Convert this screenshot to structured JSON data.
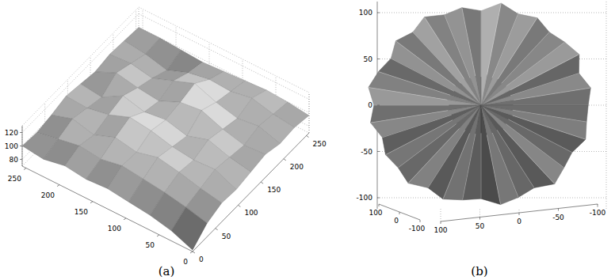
{
  "chart_data": [
    {
      "type": "surface",
      "title": "(a)",
      "x": [
        0,
        32,
        64,
        96,
        128,
        160,
        192,
        224,
        256
      ],
      "y": [
        0,
        32,
        64,
        96,
        128,
        160,
        192,
        224,
        256
      ],
      "z": [
        [
          72,
          90,
          98,
          96,
          100,
          104,
          98,
          100,
          96
        ],
        [
          85,
          98,
          104,
          110,
          106,
          102,
          108,
          104,
          100
        ],
        [
          92,
          104,
          112,
          108,
          116,
          110,
          104,
          112,
          102
        ],
        [
          96,
          108,
          118,
          112,
          106,
          122,
          112,
          106,
          100
        ],
        [
          100,
          112,
          110,
          120,
          114,
          118,
          124,
          108,
          98
        ],
        [
          98,
          106,
          116,
          124,
          110,
          104,
          112,
          102,
          96
        ],
        [
          102,
          110,
          104,
          112,
          118,
          108,
          100,
          90,
          98
        ],
        [
          96,
          104,
          112,
          106,
          100,
          114,
          106,
          98,
          100
        ],
        [
          100,
          98,
          102,
          108,
          104,
          100,
          104,
          102,
          100
        ]
      ],
      "xlim": [
        0,
        256
      ],
      "xticks": [
        0,
        50,
        100,
        150,
        200,
        250
      ],
      "ylim": [
        0,
        256
      ],
      "yticks": [
        0,
        50,
        100,
        150,
        200,
        250
      ],
      "zlim": [
        70,
        130
      ],
      "zticks": [
        80,
        100,
        120
      ],
      "grid": true
    },
    {
      "type": "surface",
      "title": "(b)",
      "theta": [
        0,
        10,
        20,
        30,
        40,
        50,
        60,
        70,
        80,
        90,
        100,
        110,
        120,
        130,
        140,
        150,
        160,
        170,
        180,
        190,
        200,
        210,
        220,
        230,
        240,
        250,
        260,
        270,
        280,
        290,
        300,
        310,
        320,
        330,
        340,
        350
      ],
      "r": [
        104,
        108,
        101,
        110,
        106,
        103,
        109,
        105,
        112,
        102,
        107,
        104,
        110,
        103,
        108,
        101,
        106,
        111,
        104,
        109,
        102,
        107,
        105,
        110,
        103,
        108,
        104,
        101,
        109,
        106,
        103,
        111,
        105,
        102,
        108,
        104
      ],
      "xlim": [
        -100,
        100
      ],
      "xticks": [
        -100,
        -50,
        0,
        50,
        100
      ],
      "ylim": [
        -100,
        100
      ],
      "yticks": [
        -100,
        0,
        100
      ],
      "zlim": [
        -112,
        112
      ],
      "zticks": [
        -100,
        -50,
        0,
        50,
        100
      ],
      "grid": true
    }
  ]
}
